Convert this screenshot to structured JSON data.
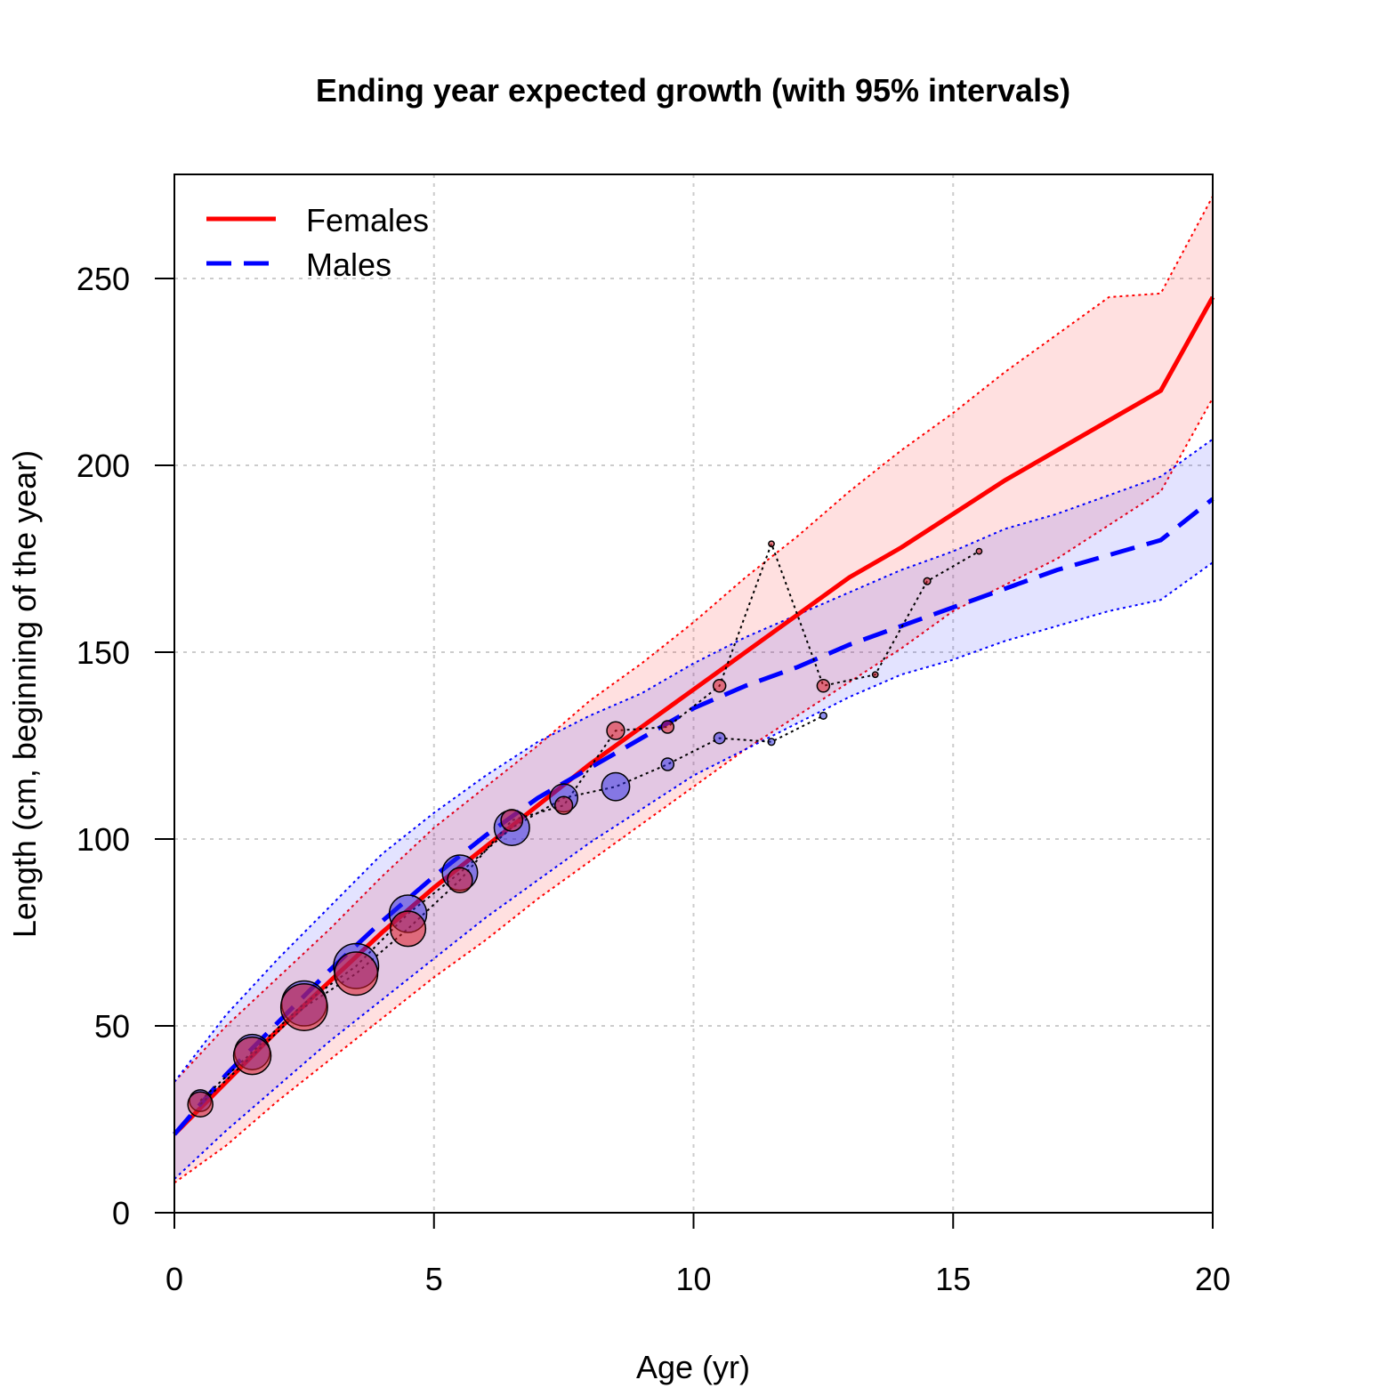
{
  "chart_data": {
    "type": "line",
    "title": "Ending year expected growth (with 95% intervals)",
    "xlabel": "Age (yr)",
    "ylabel": "Length (cm, beginning of the year)",
    "xlim": [
      0,
      20
    ],
    "ylim": [
      0,
      275
    ],
    "xticks": [
      0,
      5,
      10,
      15,
      20
    ],
    "yticks": [
      0,
      50,
      100,
      150,
      200,
      250
    ],
    "grid": true,
    "legend_position": "top-left",
    "series": [
      {
        "name": "Females",
        "color": "#ff0000",
        "style": "solid",
        "x": [
          0,
          1,
          2,
          3,
          4,
          5,
          6,
          7,
          8,
          9,
          10,
          11,
          12,
          13,
          14,
          15,
          16,
          17,
          18,
          19,
          20
        ],
        "mean": [
          21,
          35,
          49,
          62,
          75,
          87,
          98,
          109,
          120,
          130,
          140,
          150,
          160,
          170,
          178,
          187,
          196,
          204,
          212,
          220,
          245
        ],
        "lower": [
          8,
          18,
          30,
          41,
          52,
          63,
          73,
          84,
          94,
          104,
          114,
          124,
          133,
          142,
          151,
          161,
          168,
          175,
          184,
          193,
          218
        ],
        "upper": [
          35,
          50,
          63,
          76,
          90,
          103,
          114,
          125,
          137,
          147,
          158,
          170,
          181,
          193,
          204,
          214,
          225,
          235,
          245,
          246,
          272
        ]
      },
      {
        "name": "Males",
        "color": "#0000ff",
        "style": "dashed",
        "x": [
          0,
          1,
          2,
          3,
          4,
          5,
          6,
          7,
          8,
          9,
          10,
          11,
          12,
          13,
          14,
          15,
          16,
          17,
          18,
          19,
          20
        ],
        "mean": [
          21,
          37,
          51,
          65,
          78,
          90,
          101,
          111,
          119,
          127,
          135,
          141,
          146,
          152,
          157,
          162,
          167,
          172,
          176,
          180,
          191
        ],
        "lower": [
          9,
          22,
          34,
          46,
          57,
          68,
          79,
          89,
          99,
          108,
          117,
          124,
          131,
          138,
          144,
          148,
          153,
          157,
          161,
          164,
          174
        ],
        "upper": [
          35,
          53,
          68,
          82,
          96,
          107,
          117,
          126,
          133,
          139,
          147,
          154,
          160,
          166,
          172,
          177,
          183,
          187,
          192,
          197,
          207
        ]
      }
    ],
    "observed": [
      {
        "sex": "Females",
        "color": "#ff0000",
        "points": [
          {
            "age": 0.5,
            "length": 29,
            "n": 4
          },
          {
            "age": 1.5,
            "length": 42,
            "n": 9
          },
          {
            "age": 2.5,
            "length": 55,
            "n": 14
          },
          {
            "age": 3.5,
            "length": 64,
            "n": 12
          },
          {
            "age": 4.5,
            "length": 76,
            "n": 8
          },
          {
            "age": 5.5,
            "length": 89,
            "n": 4
          },
          {
            "age": 6.5,
            "length": 105,
            "n": 3
          },
          {
            "age": 7.5,
            "length": 109,
            "n": 2
          },
          {
            "age": 8.5,
            "length": 129,
            "n": 2
          },
          {
            "age": 9.5,
            "length": 130,
            "n": 1
          },
          {
            "age": 10.5,
            "length": 141,
            "n": 1
          },
          {
            "age": 11.5,
            "length": 179,
            "n": 0.2
          },
          {
            "age": 12.5,
            "length": 141,
            "n": 1
          },
          {
            "age": 13.5,
            "length": 144,
            "n": 0.2
          },
          {
            "age": 14.5,
            "length": 169,
            "n": 0.3
          },
          {
            "age": 15.5,
            "length": 177,
            "n": 0.2
          }
        ]
      },
      {
        "sex": "Males",
        "color": "#0000ff",
        "points": [
          {
            "age": 0.5,
            "length": 30,
            "n": 3
          },
          {
            "age": 1.5,
            "length": 43,
            "n": 8
          },
          {
            "age": 2.5,
            "length": 56,
            "n": 13
          },
          {
            "age": 3.5,
            "length": 66,
            "n": 13
          },
          {
            "age": 4.5,
            "length": 80,
            "n": 9
          },
          {
            "age": 5.5,
            "length": 91,
            "n": 8
          },
          {
            "age": 6.5,
            "length": 103,
            "n": 8
          },
          {
            "age": 7.5,
            "length": 111,
            "n": 5
          },
          {
            "age": 8.5,
            "length": 114,
            "n": 5
          },
          {
            "age": 9.5,
            "length": 120,
            "n": 1
          },
          {
            "age": 10.5,
            "length": 127,
            "n": 0.8
          },
          {
            "age": 11.5,
            "length": 126,
            "n": 0.3
          },
          {
            "age": 12.5,
            "length": 133,
            "n": 0.3
          }
        ]
      }
    ]
  }
}
